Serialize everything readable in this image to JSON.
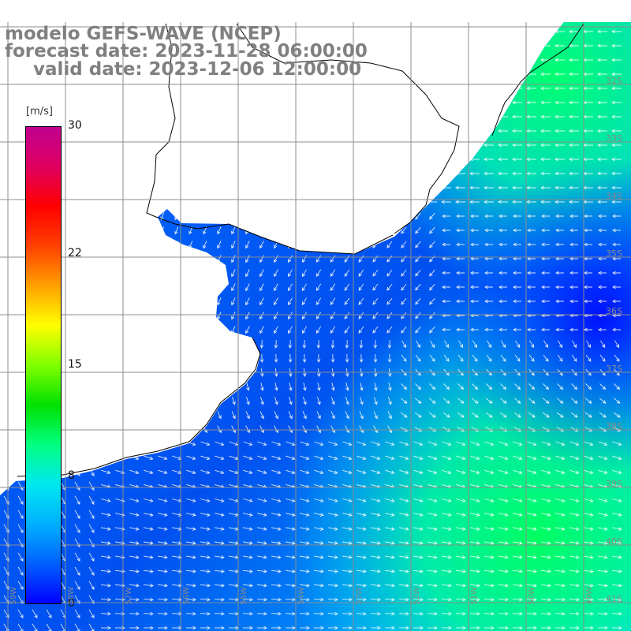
{
  "title": {
    "line1": "modelo GEFS-WAVE (NCEP)",
    "line2": "forecast date: 2023-11-28 06:00:00",
    "line3": "valid date: 2023-12-06 12:00:00"
  },
  "colorbar": {
    "unit": "[m/s]",
    "min": 0,
    "max": 30,
    "ticks": [
      "30",
      "22",
      "15",
      "8",
      "0"
    ],
    "tick_values": [
      30,
      22,
      15,
      8,
      0
    ],
    "colors": [
      "#0000ff",
      "#0060ff",
      "#00b0ff",
      "#00e8f0",
      "#00ff80",
      "#00e000",
      "#80ff00",
      "#ffff00",
      "#ffa000",
      "#ff4000",
      "#ff0000",
      "#e00060",
      "#c00090"
    ]
  },
  "grid": {
    "lat_labels": [
      "32S",
      "33S",
      "34S",
      "35S",
      "36S",
      "37S",
      "38S",
      "39S",
      "40S",
      "41S"
    ],
    "lon_labels": [
      "59W",
      "58W",
      "57W",
      "56W",
      "55W",
      "54W",
      "53W",
      "52W",
      "51W",
      "50W",
      "49W"
    ]
  },
  "colors": {
    "land": "#ffffff",
    "coast": "#000000",
    "gridline": "#8c8c8c",
    "vector": "#ffffff"
  }
}
